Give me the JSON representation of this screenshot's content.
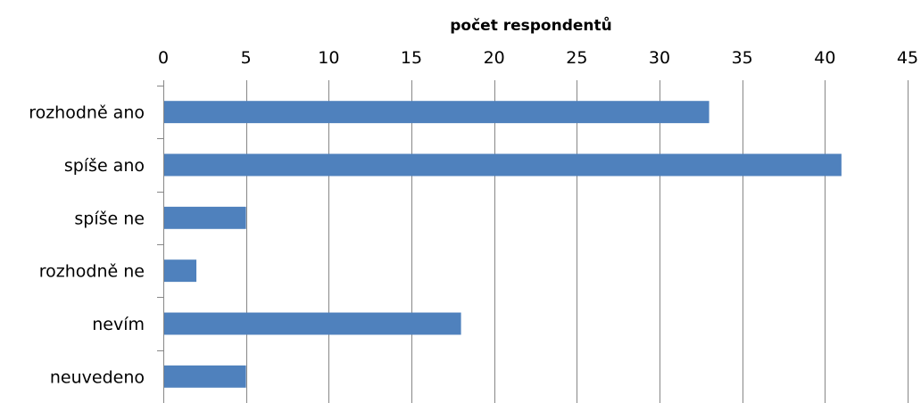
{
  "chart_data": {
    "type": "bar",
    "orientation": "horizontal",
    "title": "",
    "xlabel": "počet respondentů",
    "ylabel": "",
    "xaxis_position": "top",
    "xlim": [
      0,
      45
    ],
    "xticks": [
      0,
      5,
      10,
      15,
      20,
      25,
      30,
      35,
      40,
      45
    ],
    "grid": true,
    "legend": "none",
    "bar_color": "#4F81BD",
    "categories": [
      "rozhodně ano",
      "spíše ano",
      "spíše ne",
      "rozhodně ne",
      "nevím",
      "neuvedeno"
    ],
    "values": [
      33,
      41,
      5,
      2,
      18,
      5
    ]
  }
}
